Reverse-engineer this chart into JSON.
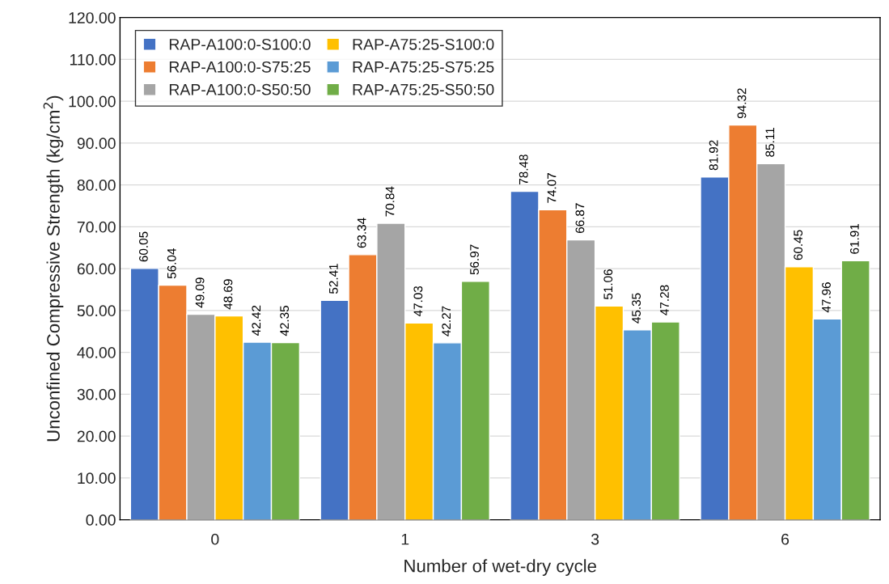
{
  "chart_data": {
    "type": "bar",
    "xlabel": "Number of wet-dry cycle",
    "ylabel": "Unconfined Compressive Strength (kg/cm$^{2}$)",
    "categories": [
      "0",
      "1",
      "3",
      "6"
    ],
    "series": [
      {
        "name": "RAP-A100:0-S100:0",
        "color": "#4472c4",
        "values": [
          60.05,
          52.41,
          78.48,
          81.92
        ]
      },
      {
        "name": "RAP-A100:0-S75:25",
        "color": "#ed7d31",
        "values": [
          56.04,
          63.34,
          74.07,
          94.32
        ]
      },
      {
        "name": "RAP-A100:0-S50:50",
        "color": "#a5a5a5",
        "values": [
          49.09,
          70.84,
          66.87,
          85.11
        ]
      },
      {
        "name": "RAP-A75:25-S100:0",
        "color": "#ffc000",
        "values": [
          48.69,
          47.03,
          51.06,
          60.45
        ]
      },
      {
        "name": "RAP-A75:25-S75:25",
        "color": "#5b9bd5",
        "values": [
          42.42,
          42.27,
          45.35,
          47.96
        ]
      },
      {
        "name": "RAP-A75:25-S50:50",
        "color": "#70ad47",
        "values": [
          42.35,
          56.97,
          47.28,
          61.91
        ]
      }
    ],
    "ylim": [
      0,
      120
    ],
    "yticks": [
      {
        "value": 0,
        "label": "0.00"
      },
      {
        "value": 10,
        "label": "10.00"
      },
      {
        "value": 20,
        "label": "20.00"
      },
      {
        "value": 30,
        "label": "30.00"
      },
      {
        "value": 40,
        "label": "40.00"
      },
      {
        "value": 50,
        "label": "50.00"
      },
      {
        "value": 60,
        "label": "60.00"
      },
      {
        "value": 70,
        "label": "70.00"
      },
      {
        "value": 80,
        "label": "80.00"
      },
      {
        "value": 90,
        "label": "90.00"
      },
      {
        "value": 100,
        "label": "100.00"
      },
      {
        "value": 110,
        "label": "110.00"
      },
      {
        "value": 120,
        "label": "120.00"
      }
    ],
    "grid": "y",
    "legend": "top left",
    "data_labels": true
  }
}
